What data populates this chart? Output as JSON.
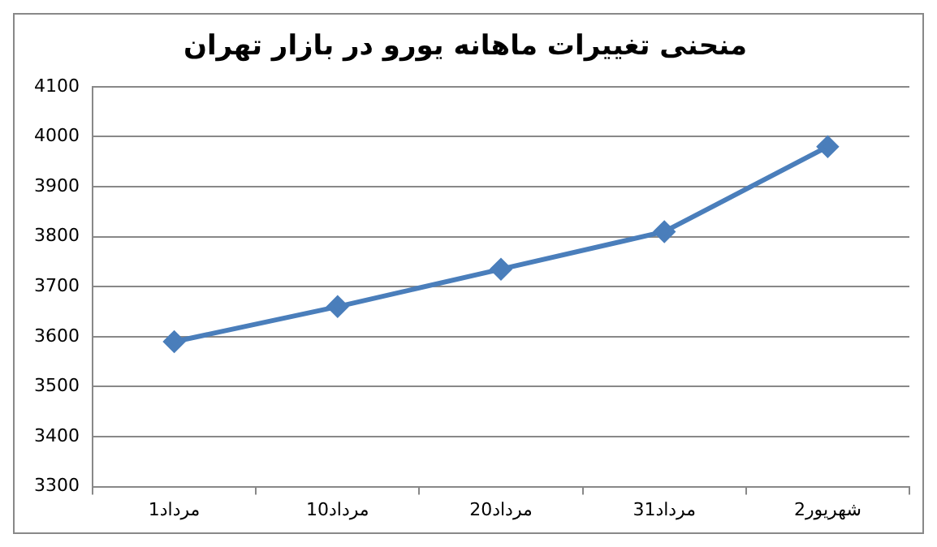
{
  "chart_data": {
    "type": "line",
    "title": "منحنی تغییرات ماهانه یورو در بازار تهران",
    "categories": [
      "1مرداد",
      "10مرداد",
      "20مرداد",
      "31مرداد",
      "2شهریور"
    ],
    "series": [
      {
        "color": "#4a7ebb",
        "values": [
          3590,
          3660,
          3735,
          3810,
          3980
        ]
      }
    ],
    "ylim": [
      3300,
      4100
    ],
    "yticks": [
      3300,
      3400,
      3500,
      3600,
      3700,
      3800,
      3900,
      4000,
      4100
    ],
    "grid": "y",
    "legend": false,
    "marker": "diamond",
    "line_style": "solid"
  }
}
